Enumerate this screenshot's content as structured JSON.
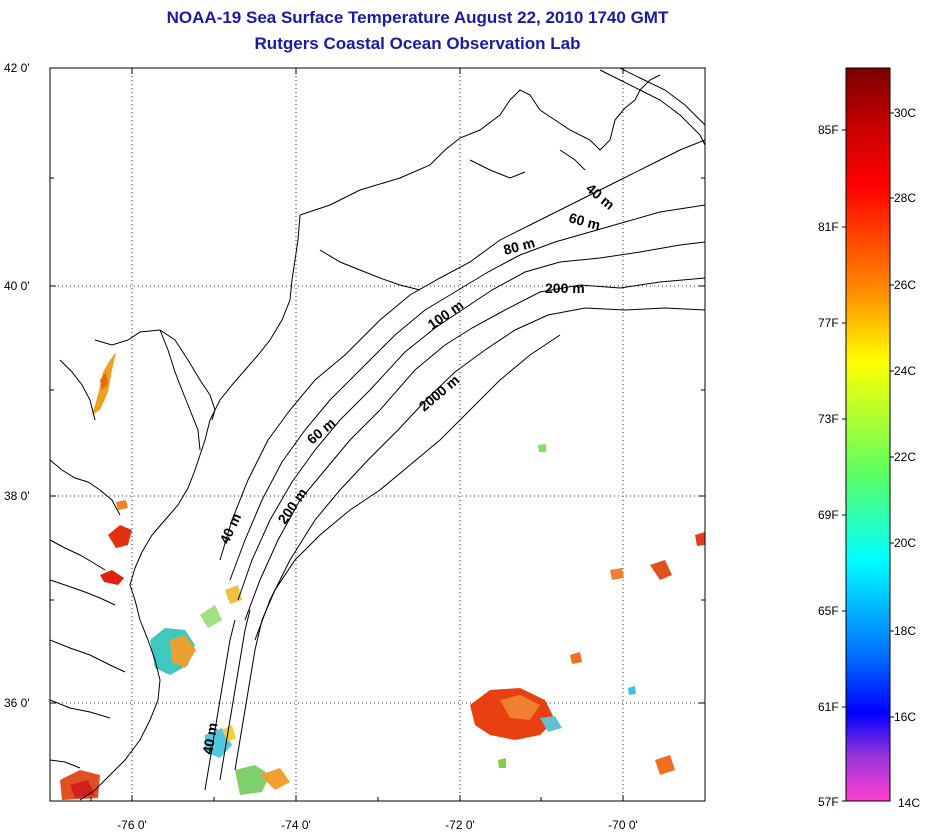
{
  "header": {
    "title_line1": "NOAA-19 Sea Surface Temperature August 22, 2010 1740 GMT",
    "title_line2": "Rutgers Coastal Ocean Observation Lab"
  },
  "map": {
    "lat_labels": [
      "42 0'",
      "40 0'",
      "38 0'",
      "36 0'"
    ],
    "lon_labels": [
      "-76 0'",
      "-74 0'",
      "-72 0'",
      "-70 0'"
    ],
    "contour_labels": [
      "40 m",
      "60 m",
      "80 m",
      "200 m",
      "100 m",
      "2000 m",
      "60 m",
      "200 m",
      "40 m",
      "40 m"
    ],
    "frame_color": "#000000",
    "grid_style": "dotted"
  },
  "colorbar": {
    "f_labels": [
      "85F",
      "81F",
      "77F",
      "73F",
      "69F",
      "65F",
      "61F",
      "57F"
    ],
    "c_labels": [
      "30C",
      "28C",
      "26C",
      "24C",
      "22C",
      "20C",
      "18C",
      "16C",
      "14C"
    ],
    "colors": [
      "#7a0000",
      "#ff0000",
      "#ff8800",
      "#ffff00",
      "#80ff40",
      "#00ffff",
      "#0070ff",
      "#0000ff",
      "#8a2be2",
      "#ff33cc"
    ]
  }
}
